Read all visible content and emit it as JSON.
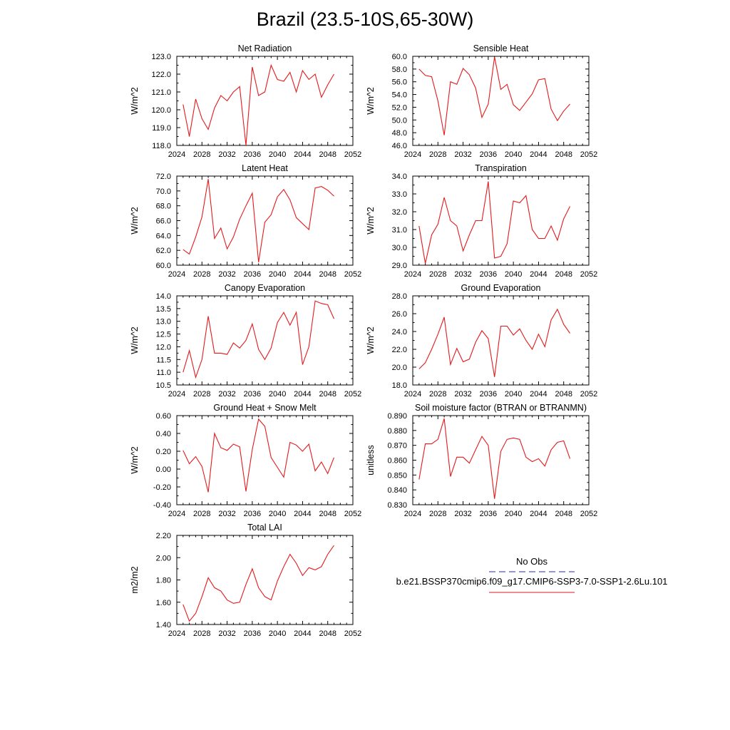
{
  "title": "Brazil (23.5-10S,65-30W)",
  "legend": {
    "entries": [
      {
        "label": "No Obs",
        "color": "#2a2ab8",
        "dash": true
      },
      {
        "label": "b.e21.BSSP370cmip6.f09_g17.CMIP6-SSP3-7.0-SSP1-2.6Lu.101",
        "color": "#e31a1c",
        "dash": false
      }
    ]
  },
  "colors": {
    "series": "#e31a1c",
    "axes": "#000000"
  },
  "chart_data": [
    {
      "type": "line",
      "title": "Net Radiation",
      "ylabel": "W/m^2",
      "xlim": [
        2024,
        2052
      ],
      "xticks": [
        2024,
        2028,
        2032,
        2036,
        2040,
        2044,
        2048,
        2052
      ],
      "ylim": [
        118.0,
        123.0
      ],
      "yticks": [
        118.0,
        119.0,
        120.0,
        121.0,
        122.0,
        123.0
      ],
      "ydecimals": 1,
      "x": [
        2025,
        2026,
        2027,
        2028,
        2029,
        2030,
        2031,
        2032,
        2033,
        2034,
        2035,
        2036,
        2037,
        2038,
        2039,
        2040,
        2041,
        2042,
        2043,
        2044,
        2045,
        2046,
        2047,
        2048,
        2049
      ],
      "values": [
        120.3,
        118.5,
        120.6,
        119.5,
        118.9,
        120.1,
        120.8,
        120.5,
        121.0,
        121.3,
        118.0,
        122.4,
        120.8,
        121.0,
        122.5,
        121.7,
        121.6,
        122.1,
        121.0,
        122.2,
        121.7,
        122.0,
        120.7,
        121.4,
        122.0
      ]
    },
    {
      "type": "line",
      "title": "Sensible Heat",
      "ylabel": "W/m^2",
      "xlim": [
        2024,
        2052
      ],
      "xticks": [
        2024,
        2028,
        2032,
        2036,
        2040,
        2044,
        2048,
        2052
      ],
      "ylim": [
        46.0,
        60.0
      ],
      "yticks": [
        46.0,
        48.0,
        50.0,
        52.0,
        54.0,
        56.0,
        58.0,
        60.0
      ],
      "ydecimals": 1,
      "x": [
        2025,
        2026,
        2027,
        2028,
        2029,
        2030,
        2031,
        2032,
        2033,
        2034,
        2035,
        2036,
        2037,
        2038,
        2039,
        2040,
        2041,
        2042,
        2043,
        2044,
        2045,
        2046,
        2047,
        2048,
        2049
      ],
      "values": [
        58.0,
        57.0,
        56.8,
        53.0,
        47.6,
        56.0,
        55.6,
        58.1,
        57.1,
        55.0,
        50.4,
        52.5,
        59.9,
        54.8,
        55.6,
        52.4,
        51.5,
        52.8,
        54.1,
        56.3,
        56.5,
        51.7,
        49.9,
        51.4,
        52.5
      ]
    },
    {
      "type": "line",
      "title": "Latent Heat",
      "ylabel": "W/m^2",
      "xlim": [
        2024,
        2052
      ],
      "xticks": [
        2024,
        2028,
        2032,
        2036,
        2040,
        2044,
        2048,
        2052
      ],
      "ylim": [
        60.0,
        72.0
      ],
      "yticks": [
        60.0,
        62.0,
        64.0,
        66.0,
        68.0,
        70.0,
        72.0
      ],
      "ydecimals": 1,
      "x": [
        2025,
        2026,
        2027,
        2028,
        2029,
        2030,
        2031,
        2032,
        2033,
        2034,
        2035,
        2036,
        2037,
        2038,
        2039,
        2040,
        2041,
        2042,
        2043,
        2044,
        2045,
        2046,
        2047,
        2048,
        2049
      ],
      "values": [
        62.1,
        61.5,
        63.8,
        66.5,
        71.6,
        63.6,
        65.0,
        62.2,
        63.8,
        66.2,
        68.0,
        69.7,
        60.4,
        65.8,
        66.8,
        69.2,
        70.2,
        68.8,
        66.4,
        65.6,
        64.8,
        70.4,
        70.6,
        70.1,
        69.3
      ]
    },
    {
      "type": "line",
      "title": "Transpiration",
      "ylabel": "W/m^2",
      "xlim": [
        2024,
        2052
      ],
      "xticks": [
        2024,
        2028,
        2032,
        2036,
        2040,
        2044,
        2048,
        2052
      ],
      "ylim": [
        29.0,
        34.0
      ],
      "yticks": [
        29.0,
        30.0,
        31.0,
        32.0,
        33.0,
        34.0
      ],
      "ydecimals": 1,
      "x": [
        2025,
        2026,
        2027,
        2028,
        2029,
        2030,
        2031,
        2032,
        2033,
        2034,
        2035,
        2036,
        2037,
        2038,
        2039,
        2040,
        2041,
        2042,
        2043,
        2044,
        2045,
        2046,
        2047,
        2048,
        2049
      ],
      "values": [
        31.2,
        29.1,
        30.7,
        31.3,
        32.8,
        31.5,
        31.2,
        29.8,
        30.7,
        31.5,
        31.5,
        33.7,
        29.4,
        29.5,
        30.2,
        32.6,
        32.5,
        32.9,
        31.0,
        30.5,
        30.5,
        31.2,
        30.4,
        31.6,
        32.3
      ]
    },
    {
      "type": "line",
      "title": "Canopy Evaporation",
      "ylabel": "W/m^2",
      "xlim": [
        2024,
        2052
      ],
      "xticks": [
        2024,
        2028,
        2032,
        2036,
        2040,
        2044,
        2048,
        2052
      ],
      "ylim": [
        10.5,
        14.0
      ],
      "yticks": [
        10.5,
        11.0,
        11.5,
        12.0,
        12.5,
        13.0,
        13.5,
        14.0
      ],
      "ydecimals": 1,
      "x": [
        2025,
        2026,
        2027,
        2028,
        2029,
        2030,
        2031,
        2032,
        2033,
        2034,
        2035,
        2036,
        2037,
        2038,
        2039,
        2040,
        2041,
        2042,
        2043,
        2044,
        2045,
        2046,
        2047,
        2048,
        2049
      ],
      "values": [
        11.0,
        11.85,
        10.8,
        11.5,
        13.2,
        11.75,
        11.75,
        11.7,
        12.15,
        11.95,
        12.25,
        12.9,
        11.9,
        11.5,
        11.95,
        12.95,
        13.35,
        12.85,
        13.35,
        11.3,
        12.0,
        13.8,
        13.7,
        13.65,
        13.1
      ]
    },
    {
      "type": "line",
      "title": "Ground Evaporation",
      "ylabel": "W/m^2",
      "xlim": [
        2024,
        2052
      ],
      "xticks": [
        2024,
        2028,
        2032,
        2036,
        2040,
        2044,
        2048,
        2052
      ],
      "ylim": [
        18.0,
        28.0
      ],
      "yticks": [
        18.0,
        20.0,
        22.0,
        24.0,
        26.0,
        28.0
      ],
      "ydecimals": 1,
      "x": [
        2025,
        2026,
        2027,
        2028,
        2029,
        2030,
        2031,
        2032,
        2033,
        2034,
        2035,
        2036,
        2037,
        2038,
        2039,
        2040,
        2041,
        2042,
        2043,
        2044,
        2045,
        2046,
        2047,
        2048,
        2049
      ],
      "values": [
        19.8,
        20.5,
        22.0,
        23.7,
        25.6,
        20.3,
        22.1,
        20.6,
        20.9,
        22.8,
        24.1,
        23.2,
        18.9,
        24.6,
        24.6,
        23.6,
        24.3,
        23.0,
        22.0,
        23.7,
        22.3,
        25.3,
        26.5,
        24.8,
        23.8
      ]
    },
    {
      "type": "line",
      "title": "Ground Heat + Snow Melt",
      "ylabel": "W/m^2",
      "xlim": [
        2024,
        2052
      ],
      "xticks": [
        2024,
        2028,
        2032,
        2036,
        2040,
        2044,
        2048,
        2052
      ],
      "ylim": [
        -0.4,
        0.6
      ],
      "yticks": [
        -0.4,
        -0.2,
        0.0,
        0.2,
        0.4,
        0.6
      ],
      "ydecimals": 2,
      "x": [
        2025,
        2026,
        2027,
        2028,
        2029,
        2030,
        2031,
        2032,
        2033,
        2034,
        2035,
        2036,
        2037,
        2038,
        2039,
        2040,
        2041,
        2042,
        2043,
        2044,
        2045,
        2046,
        2047,
        2048,
        2049
      ],
      "values": [
        0.21,
        0.06,
        0.14,
        0.03,
        -0.26,
        0.4,
        0.24,
        0.21,
        0.28,
        0.25,
        -0.25,
        0.22,
        0.56,
        0.48,
        0.13,
        0.02,
        -0.09,
        0.3,
        0.27,
        0.2,
        0.28,
        -0.02,
        0.08,
        -0.05,
        0.13
      ]
    },
    {
      "type": "line",
      "title": "Soil moisture factor (BTRAN or BTRANMN)",
      "ylabel": "unitless",
      "xlim": [
        2024,
        2052
      ],
      "xticks": [
        2024,
        2028,
        2032,
        2036,
        2040,
        2044,
        2048,
        2052
      ],
      "ylim": [
        0.83,
        0.89
      ],
      "yticks": [
        0.83,
        0.84,
        0.85,
        0.86,
        0.87,
        0.88,
        0.89
      ],
      "ydecimals": 3,
      "x": [
        2025,
        2026,
        2027,
        2028,
        2029,
        2030,
        2031,
        2032,
        2033,
        2034,
        2035,
        2036,
        2037,
        2038,
        2039,
        2040,
        2041,
        2042,
        2043,
        2044,
        2045,
        2046,
        2047,
        2048,
        2049
      ],
      "values": [
        0.847,
        0.871,
        0.871,
        0.874,
        0.888,
        0.849,
        0.862,
        0.862,
        0.858,
        0.867,
        0.876,
        0.87,
        0.834,
        0.866,
        0.874,
        0.875,
        0.874,
        0.862,
        0.859,
        0.861,
        0.856,
        0.867,
        0.872,
        0.873,
        0.861
      ]
    },
    {
      "type": "line",
      "title": "Total LAI",
      "ylabel": "m2/m2",
      "xlim": [
        2024,
        2052
      ],
      "xticks": [
        2024,
        2028,
        2032,
        2036,
        2040,
        2044,
        2048,
        2052
      ],
      "ylim": [
        1.4,
        2.2
      ],
      "yticks": [
        1.4,
        1.6,
        1.8,
        2.0,
        2.2
      ],
      "ydecimals": 2,
      "x": [
        2025,
        2026,
        2027,
        2028,
        2029,
        2030,
        2031,
        2032,
        2033,
        2034,
        2035,
        2036,
        2037,
        2038,
        2039,
        2040,
        2041,
        2042,
        2043,
        2044,
        2045,
        2046,
        2047,
        2048,
        2049
      ],
      "values": [
        1.58,
        1.43,
        1.5,
        1.65,
        1.82,
        1.73,
        1.7,
        1.62,
        1.59,
        1.6,
        1.76,
        1.9,
        1.73,
        1.65,
        1.62,
        1.79,
        1.92,
        2.03,
        1.95,
        1.84,
        1.91,
        1.89,
        1.92,
        2.03,
        2.11
      ]
    }
  ]
}
